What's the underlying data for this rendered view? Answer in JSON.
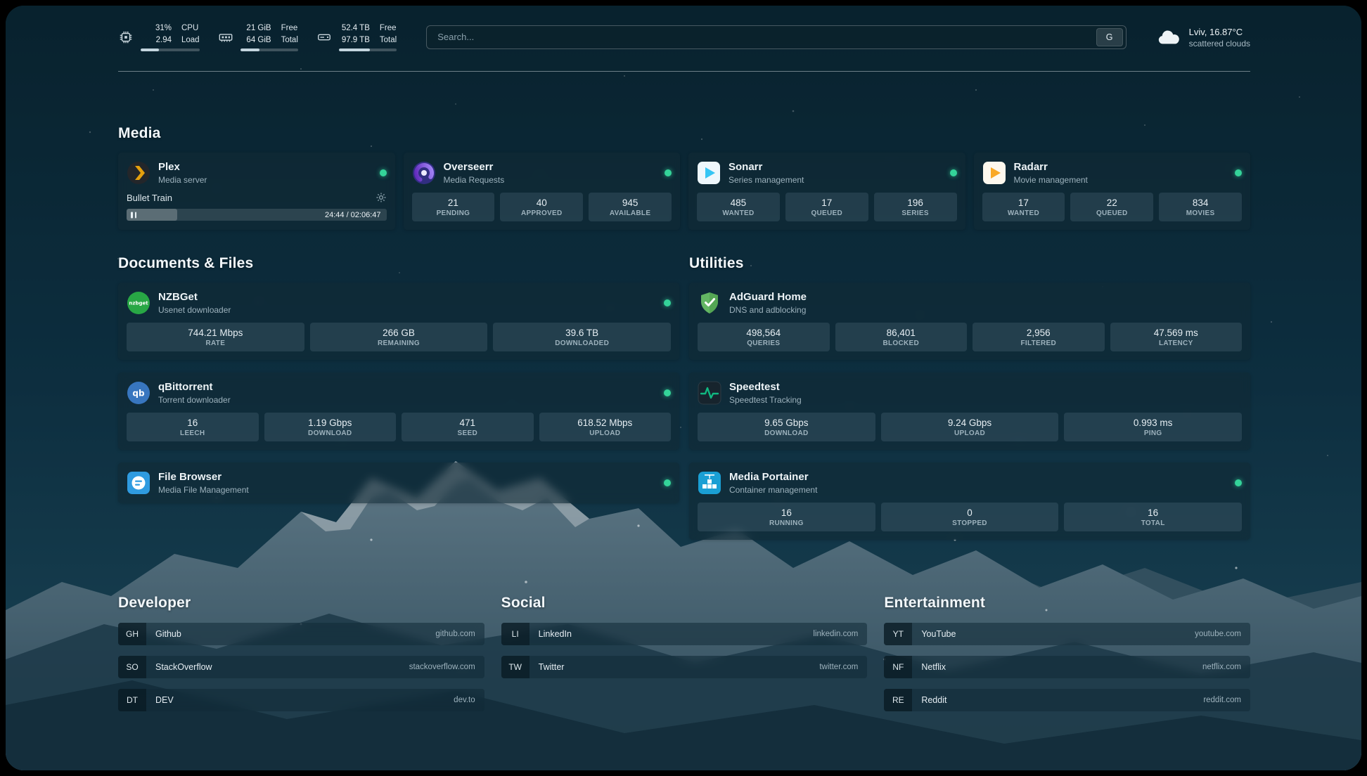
{
  "topbar": {
    "resources": [
      {
        "name": "cpu",
        "value_top": "31%",
        "value_bottom": "2.94",
        "label_top": "CPU",
        "label_bottom": "Load",
        "progress": 31
      },
      {
        "name": "memory",
        "value_top": "21 GiB",
        "value_bottom": "64 GiB",
        "label_top": "Free",
        "label_bottom": "Total",
        "progress": 33
      },
      {
        "name": "disk",
        "value_top": "52.4 TB",
        "value_bottom": "97.9 TB",
        "label_top": "Free",
        "label_bottom": "Total",
        "progress": 54
      }
    ],
    "search": {
      "placeholder": "Search...",
      "provider_label": "G"
    },
    "weather": {
      "location": "Lviv, 16.87°C",
      "condition": "scattered clouds"
    }
  },
  "sections": {
    "media": "Media",
    "documents": "Documents & Files",
    "utilities": "Utilities",
    "developer": "Developer",
    "social": "Social",
    "entertainment": "Entertainment"
  },
  "services": {
    "plex": {
      "name": "Plex",
      "desc": "Media server",
      "now_playing": "Bullet Train",
      "elapsed_total": "24:44 / 02:06:47",
      "progress_percent": 19.5
    },
    "overseerr": {
      "name": "Overseerr",
      "desc": "Media Requests",
      "stats": [
        {
          "value": "21",
          "label": "PENDING"
        },
        {
          "value": "40",
          "label": "APPROVED"
        },
        {
          "value": "945",
          "label": "AVAILABLE"
        }
      ]
    },
    "sonarr": {
      "name": "Sonarr",
      "desc": "Series management",
      "stats": [
        {
          "value": "485",
          "label": "WANTED"
        },
        {
          "value": "17",
          "label": "QUEUED"
        },
        {
          "value": "196",
          "label": "SERIES"
        }
      ]
    },
    "radarr": {
      "name": "Radarr",
      "desc": "Movie management",
      "stats": [
        {
          "value": "17",
          "label": "WANTED"
        },
        {
          "value": "22",
          "label": "QUEUED"
        },
        {
          "value": "834",
          "label": "MOVIES"
        }
      ]
    },
    "nzbget": {
      "name": "NZBGet",
      "desc": "Usenet downloader",
      "stats": [
        {
          "value": "744.21 Mbps",
          "label": "RATE"
        },
        {
          "value": "266 GB",
          "label": "REMAINING"
        },
        {
          "value": "39.6 TB",
          "label": "DOWNLOADED"
        }
      ]
    },
    "qbittorrent": {
      "name": "qBittorrent",
      "desc": "Torrent downloader",
      "stats": [
        {
          "value": "16",
          "label": "LEECH"
        },
        {
          "value": "1.19 Gbps",
          "label": "DOWNLOAD"
        },
        {
          "value": "471",
          "label": "SEED"
        },
        {
          "value": "618.52 Mbps",
          "label": "UPLOAD"
        }
      ]
    },
    "filebrowser": {
      "name": "File Browser",
      "desc": "Media File Management"
    },
    "adguard": {
      "name": "AdGuard Home",
      "desc": "DNS and adblocking",
      "stats": [
        {
          "value": "498,564",
          "label": "QUERIES"
        },
        {
          "value": "86,401",
          "label": "BLOCKED"
        },
        {
          "value": "2,956",
          "label": "FILTERED"
        },
        {
          "value": "47.569 ms",
          "label": "LATENCY"
        }
      ]
    },
    "speedtest": {
      "name": "Speedtest",
      "desc": "Speedtest Tracking",
      "stats": [
        {
          "value": "9.65 Gbps",
          "label": "DOWNLOAD"
        },
        {
          "value": "9.24 Gbps",
          "label": "UPLOAD"
        },
        {
          "value": "0.993 ms",
          "label": "PING"
        }
      ]
    },
    "portainer": {
      "name": "Media Portainer",
      "desc": "Container management",
      "stats": [
        {
          "value": "16",
          "label": "RUNNING"
        },
        {
          "value": "0",
          "label": "STOPPED"
        },
        {
          "value": "16",
          "label": "TOTAL"
        }
      ]
    }
  },
  "bookmarks": {
    "developer": [
      {
        "abbr": "GH",
        "name": "Github",
        "domain": "github.com"
      },
      {
        "abbr": "SO",
        "name": "StackOverflow",
        "domain": "stackoverflow.com"
      },
      {
        "abbr": "DT",
        "name": "DEV",
        "domain": "dev.to"
      }
    ],
    "social": [
      {
        "abbr": "LI",
        "name": "LinkedIn",
        "domain": "linkedin.com"
      },
      {
        "abbr": "TW",
        "name": "Twitter",
        "domain": "twitter.com"
      }
    ],
    "entertainment": [
      {
        "abbr": "YT",
        "name": "YouTube",
        "domain": "youtube.com"
      },
      {
        "abbr": "NF",
        "name": "Netflix",
        "domain": "netflix.com"
      },
      {
        "abbr": "RE",
        "name": "Reddit",
        "domain": "reddit.com"
      }
    ]
  },
  "colors": {
    "status_online": "#34d399",
    "accent_green": "#10b981"
  }
}
